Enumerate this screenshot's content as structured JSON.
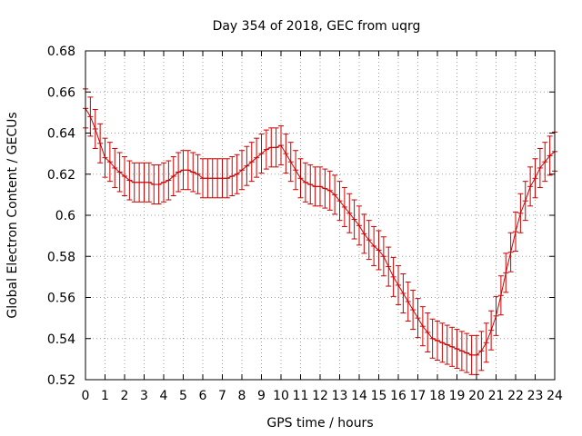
{
  "chart_data": {
    "type": "line",
    "title": "Day 354 of 2018, GEC from uqrg",
    "xlabel": "GPS time / hours",
    "ylabel": "Global Electron Content / GECUs",
    "xlim": [
      0,
      24
    ],
    "ylim": [
      0.52,
      0.68
    ],
    "grid": true,
    "x_ticks": [
      "0",
      "1",
      "2",
      "3",
      "4",
      "5",
      "6",
      "7",
      "8",
      "9",
      "10",
      "11",
      "12",
      "13",
      "14",
      "15",
      "16",
      "17",
      "18",
      "19",
      "20",
      "21",
      "22",
      "23",
      "24"
    ],
    "y_ticks": [
      "0.52",
      "0.54",
      "0.56",
      "0.58",
      "0.6",
      "0.62",
      "0.64",
      "0.66",
      "0.68"
    ],
    "color": "#cc0000",
    "series": [
      {
        "name": "GEC",
        "error": 0.0095,
        "x": [
          0,
          0.25,
          0.5,
          0.75,
          1,
          1.25,
          1.5,
          1.75,
          2,
          2.25,
          2.5,
          2.75,
          3,
          3.25,
          3.5,
          3.75,
          4,
          4.25,
          4.5,
          4.75,
          5,
          5.25,
          5.5,
          5.75,
          6,
          6.25,
          6.5,
          6.75,
          7,
          7.25,
          7.5,
          7.75,
          8,
          8.25,
          8.5,
          8.75,
          9,
          9.25,
          9.5,
          9.75,
          10,
          10.25,
          10.5,
          10.75,
          11,
          11.25,
          11.5,
          11.75,
          12,
          12.25,
          12.5,
          12.75,
          13,
          13.25,
          13.5,
          13.75,
          14,
          14.25,
          14.5,
          14.75,
          15,
          15.25,
          15.5,
          15.75,
          16,
          16.25,
          16.5,
          16.75,
          17,
          17.25,
          17.5,
          17.75,
          18,
          18.25,
          18.5,
          18.75,
          19,
          19.25,
          19.5,
          19.75,
          20,
          20.25,
          20.5,
          20.75,
          21,
          21.25,
          21.5,
          21.75,
          22,
          22.25,
          22.5,
          22.75,
          23,
          23.25,
          23.5,
          23.75,
          24
        ],
        "y": [
          0.652,
          0.648,
          0.642,
          0.635,
          0.628,
          0.626,
          0.623,
          0.621,
          0.619,
          0.617,
          0.616,
          0.616,
          0.616,
          0.616,
          0.615,
          0.615,
          0.616,
          0.617,
          0.619,
          0.621,
          0.622,
          0.622,
          0.621,
          0.62,
          0.618,
          0.618,
          0.618,
          0.618,
          0.618,
          0.618,
          0.619,
          0.62,
          0.622,
          0.624,
          0.626,
          0.628,
          0.63,
          0.632,
          0.633,
          0.633,
          0.634,
          0.63,
          0.626,
          0.622,
          0.618,
          0.616,
          0.615,
          0.614,
          0.614,
          0.613,
          0.612,
          0.61,
          0.607,
          0.604,
          0.601,
          0.598,
          0.595,
          0.591,
          0.588,
          0.585,
          0.583,
          0.58,
          0.575,
          0.57,
          0.566,
          0.562,
          0.558,
          0.554,
          0.55,
          0.546,
          0.543,
          0.54,
          0.539,
          0.538,
          0.537,
          0.536,
          0.535,
          0.534,
          0.533,
          0.532,
          0.532,
          0.534,
          0.538,
          0.544,
          0.551,
          0.561,
          0.572,
          0.582,
          0.592,
          0.601,
          0.607,
          0.614,
          0.618,
          0.623,
          0.626,
          0.629,
          0.631
        ]
      }
    ]
  }
}
